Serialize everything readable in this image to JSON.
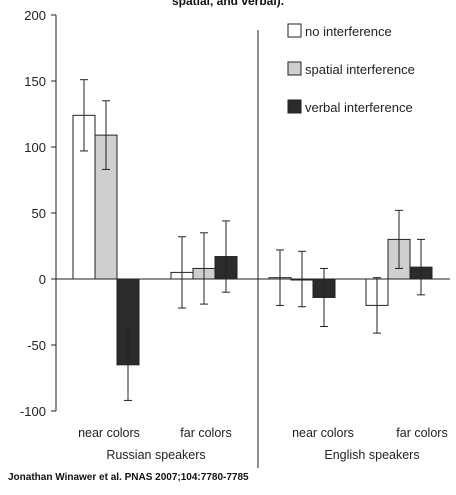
{
  "title_fragment": "spatial, and verbal).",
  "credit": "Jonathan Winawer et al. PNAS 2007;104:7780-7785",
  "colors": {
    "no": "#ffffff",
    "spatial": "#cfcfcf",
    "verbal": "#2b2b2b",
    "stroke": "#222222"
  },
  "chart_data": {
    "type": "bar",
    "ylim": [
      -100,
      200
    ],
    "yticks": [
      -100,
      -50,
      0,
      50,
      100,
      150,
      200
    ],
    "ytick_labels": [
      "-100",
      "-50",
      "0",
      "50",
      "100",
      "150",
      "200"
    ],
    "grid": false,
    "legend_position": "top-right",
    "groups": [
      {
        "label": "Russian speakers",
        "categories": [
          "near colors",
          "far colors"
        ]
      },
      {
        "label": "English speakers",
        "categories": [
          "near colors",
          "far colors"
        ]
      }
    ],
    "series": [
      {
        "name": "no interference",
        "values": [
          124,
          5,
          1,
          -20
        ],
        "err": [
          27,
          27,
          21,
          21
        ]
      },
      {
        "name": "spatial interference",
        "values": [
          109,
          8,
          0,
          30
        ],
        "err": [
          26,
          27,
          21,
          22
        ]
      },
      {
        "name": "verbal interference",
        "values": [
          -65,
          17,
          -14,
          9
        ],
        "err": [
          27,
          27,
          22,
          21
        ]
      }
    ]
  }
}
